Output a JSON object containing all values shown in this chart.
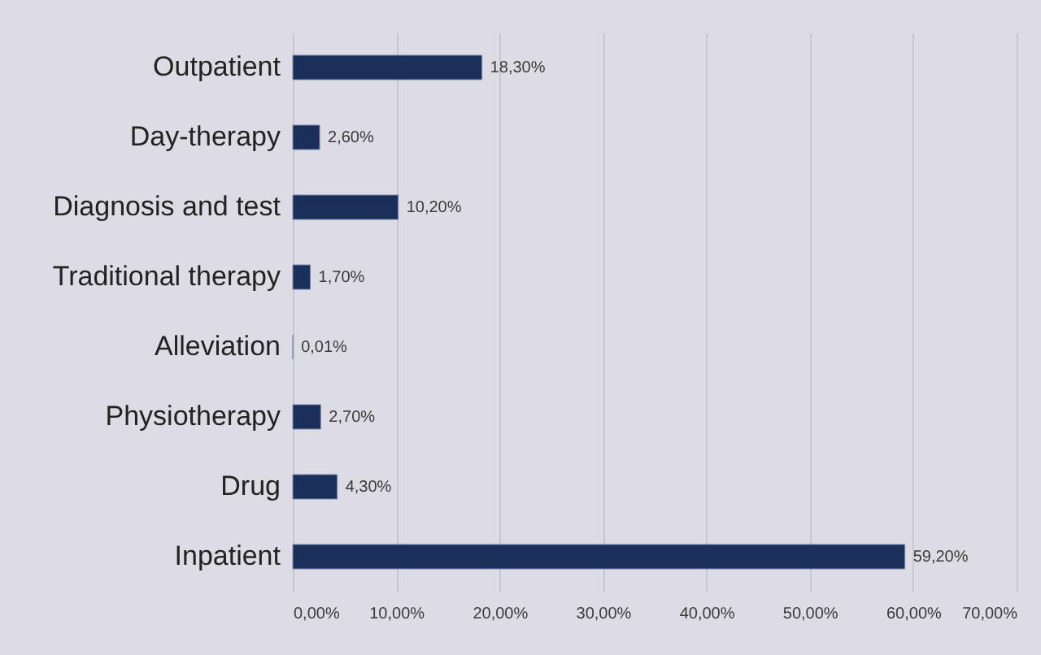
{
  "chart_data": {
    "type": "bar",
    "orientation": "horizontal",
    "categories": [
      "Outpatient",
      "Day-therapy",
      "Diagnosis and test",
      "Traditional therapy",
      "Alleviation",
      "Physiotherapy",
      "Drug",
      "Inpatient"
    ],
    "values": [
      18.3,
      2.6,
      10.2,
      1.7,
      0.01,
      2.7,
      4.3,
      59.2
    ],
    "color": "#1b2f5b",
    "value_labels": [
      "18,30%",
      "2,60%",
      "10,20%",
      "1,70%",
      "0,01%",
      "2,70%",
      "4,30%",
      "59,20%"
    ],
    "xlim": [
      0,
      70
    ],
    "xticks": [
      {
        "value": 0,
        "label": "0,00%"
      },
      {
        "value": 10,
        "label": "10,00%"
      },
      {
        "value": 20,
        "label": "20,00%"
      },
      {
        "value": 30,
        "label": "30,00%"
      },
      {
        "value": 40,
        "label": "40,00%"
      },
      {
        "value": 50,
        "label": "50,00%"
      },
      {
        "value": 60,
        "label": "60,00%"
      },
      {
        "value": 70,
        "label": "70,00%"
      }
    ],
    "grid": "x"
  }
}
